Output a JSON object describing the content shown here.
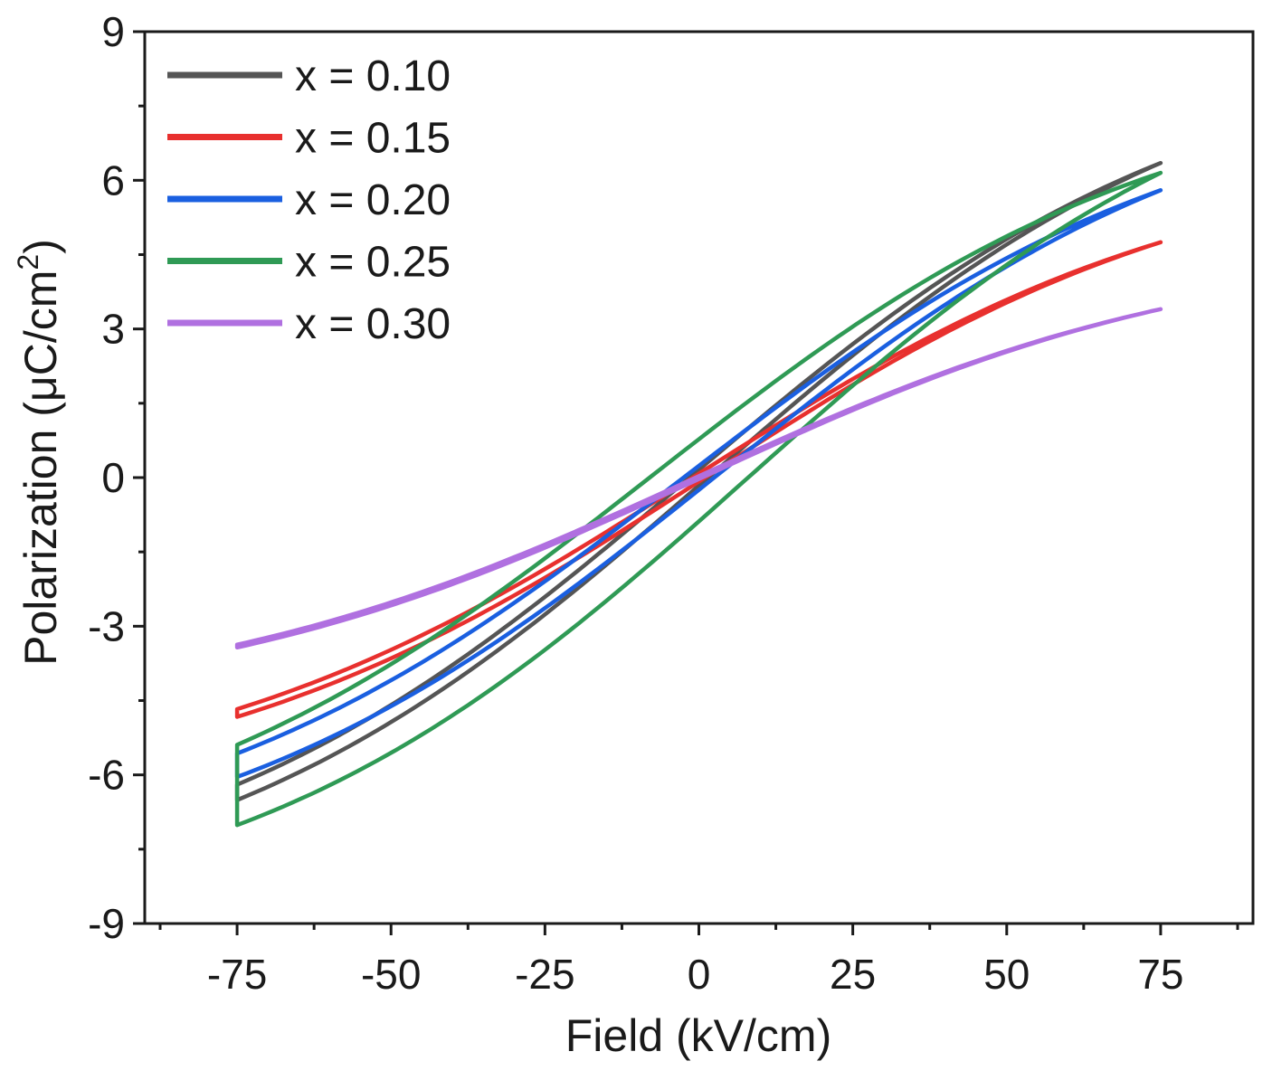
{
  "chart_data": {
    "type": "line",
    "title": "",
    "xlabel": "Field (kV/cm)",
    "ylabel_main": "Polarization (μC/cm",
    "ylabel_sup": "2",
    "ylabel_close": ")",
    "xlim": [
      -90,
      90
    ],
    "ylim": [
      -9,
      9
    ],
    "x_ticks": [
      -75,
      -50,
      -25,
      0,
      25,
      50,
      75
    ],
    "x_tick_labels": [
      "-75",
      "-50",
      "-25",
      "0",
      "25",
      "50",
      "75"
    ],
    "y_ticks": [
      -9,
      -6,
      -3,
      0,
      3,
      6,
      9
    ],
    "y_tick_labels": [
      "-9",
      "-6",
      "-3",
      "0",
      "3",
      "6",
      "9"
    ],
    "legend_position": "top-left",
    "series": [
      {
        "name": "x = 0.10",
        "color": "#555555",
        "Pmax": 6.35,
        "Pr": 0.25,
        "Ec": 1.5
      },
      {
        "name": "x = 0.15",
        "color": "#e8302e",
        "Pmax": 4.75,
        "Pr": 0.12,
        "Ec": 1.0
      },
      {
        "name": "x = 0.20",
        "color": "#1a5fe0",
        "Pmax": 5.8,
        "Pr": 0.35,
        "Ec": 2.5
      },
      {
        "name": "x = 0.25",
        "color": "#2f9a55",
        "Pmax": 6.15,
        "Pr": 0.75,
        "Ec": 8.0
      },
      {
        "name": "x = 0.30",
        "color": "#b070e0",
        "Pmax": 3.4,
        "Pr": 0.04,
        "Ec": 0.5
      }
    ],
    "loop_shape_note": "P(E)=Pmax*tanh(k*(E±Ec))/tanh(k*(75±Ec))",
    "E_max": 75
  }
}
